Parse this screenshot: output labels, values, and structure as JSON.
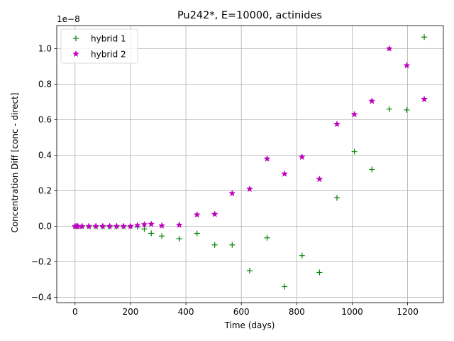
{
  "chart_data": {
    "type": "scatter",
    "title": "Pu242*, E=10000, actinides",
    "xlabel": "Time (days)",
    "ylabel": "Concentration Diff [conc - direct]",
    "y_scale_label": "1e−8",
    "xlim": [
      -66,
      1329
    ],
    "ylim": [
      -0.43,
      1.13
    ],
    "x_ticks": [
      0,
      200,
      400,
      600,
      800,
      1000,
      1200
    ],
    "x_tick_labels": [
      "0",
      "200",
      "400",
      "600",
      "800",
      "1000",
      "1200"
    ],
    "y_ticks": [
      -0.4,
      -0.2,
      0.0,
      0.2,
      0.4,
      0.6,
      0.8,
      1.0
    ],
    "y_tick_labels": [
      "−0.4",
      "−0.2",
      "0.0",
      "0.2",
      "0.4",
      "0.6",
      "0.8",
      "1.0"
    ],
    "grid": true,
    "legend_position": "top-left",
    "series": [
      {
        "name": "hybrid 1",
        "marker": "plus",
        "color": "#008000",
        "x": [
          0,
          5,
          10,
          25,
          50,
          75,
          100,
          125,
          150,
          175,
          200,
          225,
          250,
          275,
          313,
          376,
          440,
          504,
          567,
          630,
          693,
          756,
          819,
          882,
          945,
          1008,
          1071,
          1134,
          1197,
          1260
        ],
        "y": [
          0.0,
          0.0,
          0.0,
          0.0,
          0.0,
          0.0,
          0.0,
          0.0,
          0.0,
          0.0,
          0.0,
          -0.003,
          -0.015,
          -0.04,
          -0.055,
          -0.07,
          -0.04,
          -0.105,
          -0.105,
          -0.25,
          -0.065,
          -0.34,
          -0.165,
          -0.26,
          0.16,
          0.42,
          0.32,
          0.66,
          0.655,
          1.065
        ]
      },
      {
        "name": "hybrid 2",
        "marker": "star",
        "color": "#bf00bf",
        "x": [
          0,
          5,
          10,
          25,
          50,
          75,
          100,
          125,
          150,
          175,
          200,
          225,
          250,
          275,
          313,
          376,
          440,
          504,
          567,
          630,
          693,
          756,
          819,
          882,
          945,
          1008,
          1071,
          1134,
          1197,
          1260
        ],
        "y": [
          0.0,
          0.0,
          0.0,
          0.0,
          0.0,
          0.0,
          0.0,
          0.0,
          0.0,
          0.0,
          0.0,
          0.005,
          0.01,
          0.012,
          0.003,
          0.007,
          0.065,
          0.068,
          0.185,
          0.21,
          0.38,
          0.295,
          0.39,
          0.265,
          0.575,
          0.63,
          0.705,
          1.0,
          0.905,
          0.715
        ]
      }
    ]
  }
}
